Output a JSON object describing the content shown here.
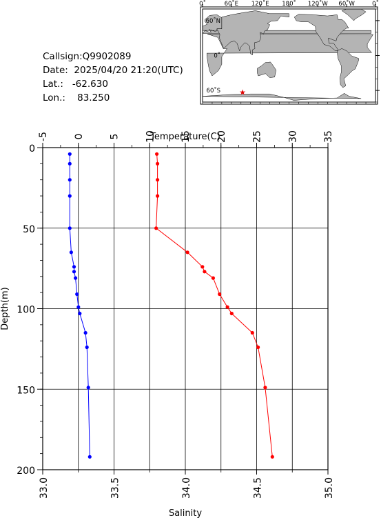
{
  "station": {
    "callsign_label": "Callsign:",
    "callsign": "Q9902089",
    "date_label": "Date:",
    "date": "2025/04/20 21:20(UTC)",
    "lat_label": "Lat.:",
    "lat": "-62.630",
    "lon_label": "Lon.:",
    "lon": "83.250"
  },
  "map": {
    "lon_labels": [
      "0˚",
      "60˚E",
      "120˚E",
      "180˚",
      "120˚W",
      "60˚W",
      "0˚"
    ],
    "lat_labels": [
      "60˚N",
      "0˚",
      "60˚S"
    ],
    "marker": {
      "lon": 83.25,
      "lat": -62.63,
      "symbol": "★",
      "color": "#e00000"
    },
    "land_color": "#b4b4b4",
    "ocean_color": "#ffffff"
  },
  "chart_data": {
    "type": "line",
    "ylabel": "Depth(m)",
    "top_xlabel": "Temperature(C)",
    "bottom_xlabel": "Salinity",
    "depth_range": [
      0,
      200
    ],
    "depth_ticks": [
      0,
      50,
      100,
      150,
      200
    ],
    "temperature_range": [
      -5,
      35
    ],
    "temperature_ticks": [
      -5,
      0,
      5,
      10,
      15,
      20,
      25,
      30,
      35
    ],
    "salinity_range": [
      33.0,
      35.0
    ],
    "salinity_ticks": [
      "33.0",
      "33.5",
      "34.0",
      "34.5",
      "35.0"
    ],
    "grid": true,
    "series": [
      {
        "color": "#0000ff",
        "axis": "salinity",
        "points": [
          [
            33.19,
            4
          ],
          [
            33.19,
            10
          ],
          [
            33.19,
            20
          ],
          [
            33.19,
            30
          ],
          [
            33.19,
            50
          ],
          [
            33.2,
            65
          ],
          [
            33.22,
            74
          ],
          [
            33.22,
            77
          ],
          [
            33.23,
            81
          ],
          [
            33.24,
            91
          ],
          [
            33.25,
            99
          ],
          [
            33.26,
            103
          ],
          [
            33.3,
            115
          ],
          [
            33.31,
            124
          ],
          [
            33.32,
            149
          ],
          [
            33.33,
            192
          ]
        ]
      },
      {
        "color": "#ff0000",
        "axis": "temperature",
        "points": [
          [
            11.0,
            4
          ],
          [
            11.1,
            10
          ],
          [
            11.1,
            20
          ],
          [
            11.1,
            30
          ],
          [
            10.9,
            50
          ],
          [
            15.3,
            65
          ],
          [
            17.4,
            74
          ],
          [
            17.7,
            77
          ],
          [
            18.9,
            81
          ],
          [
            19.8,
            91
          ],
          [
            20.9,
            99
          ],
          [
            21.5,
            103
          ],
          [
            24.4,
            115
          ],
          [
            25.2,
            124
          ],
          [
            26.2,
            149
          ],
          [
            27.2,
            192
          ]
        ]
      }
    ]
  }
}
